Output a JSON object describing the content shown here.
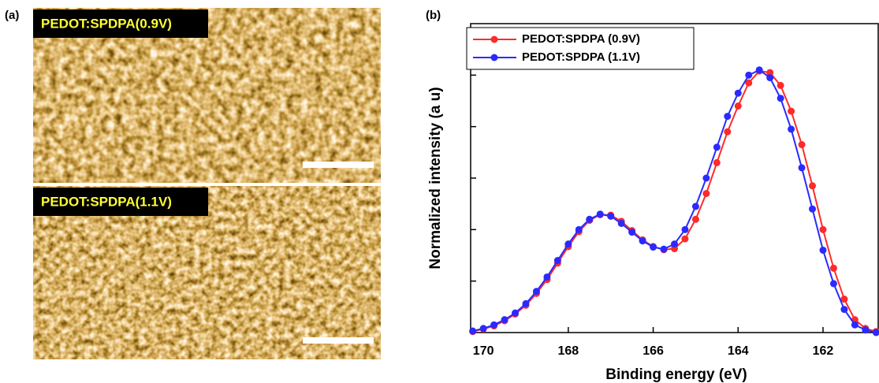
{
  "figure": {
    "panel_a_label": "(a)",
    "images": [
      {
        "label": "PEDOT:SPDPA(0.9V)"
      },
      {
        "label": "PEDOT:SPDPA(1.1V)"
      }
    ]
  },
  "chart_data": {
    "type": "line",
    "panel_label": "(b)",
    "x_label": "Binding energy (eV)",
    "y_label": "Normalized intensity (a u)",
    "x": [
      170.25,
      170.0,
      169.75,
      169.5,
      169.25,
      169.0,
      168.75,
      168.5,
      168.25,
      168.0,
      167.75,
      167.5,
      167.25,
      167.0,
      166.75,
      166.5,
      166.25,
      166.0,
      165.75,
      165.5,
      165.25,
      165.0,
      164.75,
      164.5,
      164.25,
      164.0,
      163.75,
      163.5,
      163.25,
      163.0,
      162.75,
      162.5,
      162.25,
      162.0,
      161.75,
      161.5,
      161.25,
      161.0,
      160.75
    ],
    "series": [
      {
        "name": "PEDOT:SPDPA (0.9V)",
        "color": "#ff2a2a",
        "values": [
          0.02,
          0.07,
          0.13,
          0.23,
          0.36,
          0.53,
          0.76,
          1.03,
          1.35,
          1.67,
          1.96,
          2.18,
          2.29,
          2.28,
          2.16,
          1.98,
          1.8,
          1.67,
          1.61,
          1.63,
          1.82,
          2.2,
          2.7,
          3.3,
          3.9,
          4.4,
          4.85,
          5.08,
          5.05,
          4.8,
          4.3,
          3.65,
          2.85,
          2.0,
          1.25,
          0.65,
          0.25,
          0.08,
          0.02
        ]
      },
      {
        "name": "PEDOT:SPDPA (1.1V)",
        "color": "#2a2aff",
        "values": [
          0.03,
          0.08,
          0.15,
          0.25,
          0.38,
          0.56,
          0.8,
          1.08,
          1.4,
          1.72,
          2.0,
          2.2,
          2.3,
          2.26,
          2.12,
          1.95,
          1.78,
          1.66,
          1.62,
          1.72,
          2.0,
          2.45,
          3.0,
          3.6,
          4.2,
          4.65,
          5.0,
          5.1,
          4.95,
          4.55,
          3.95,
          3.2,
          2.4,
          1.6,
          0.95,
          0.45,
          0.15,
          0.05,
          0.0
        ]
      }
    ],
    "xlim": [
      170.3,
      160.7
    ],
    "xticks": [
      170,
      168,
      166,
      164,
      162
    ],
    "ylim": [
      0,
      6
    ],
    "yticks": [
      0,
      1,
      2,
      3,
      4,
      5
    ],
    "legend": "upper left"
  }
}
